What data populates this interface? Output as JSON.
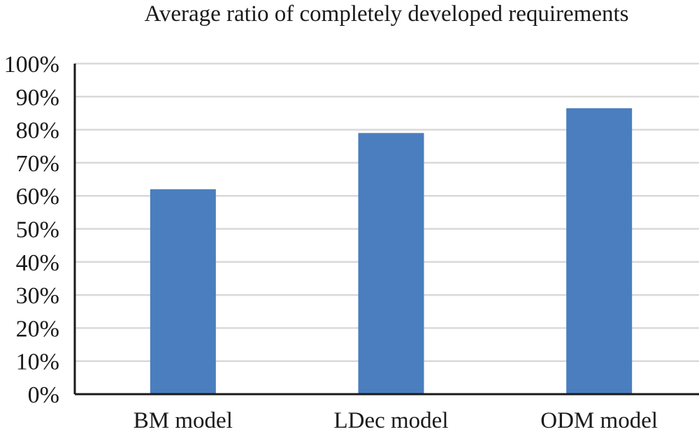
{
  "chart_data": {
    "type": "bar",
    "title": "Average ratio of completely developed requirements",
    "categories": [
      "BM model",
      "LDec model",
      "ODM model"
    ],
    "values": [
      62,
      79,
      86.5
    ],
    "value_unit": "%",
    "ylim": [
      0,
      100
    ],
    "yticks": [
      "0%",
      "10%",
      "20%",
      "30%",
      "40%",
      "50%",
      "60%",
      "70%",
      "80%",
      "90%",
      "100%"
    ],
    "ytick_values": [
      0,
      10,
      20,
      30,
      40,
      50,
      60,
      70,
      80,
      90,
      100
    ],
    "xlabel": "",
    "ylabel": "",
    "grid": true,
    "bar_color": "#4a7ebf",
    "grid_color": "#d9d9d9",
    "axis_color": "#1a1a1a"
  }
}
